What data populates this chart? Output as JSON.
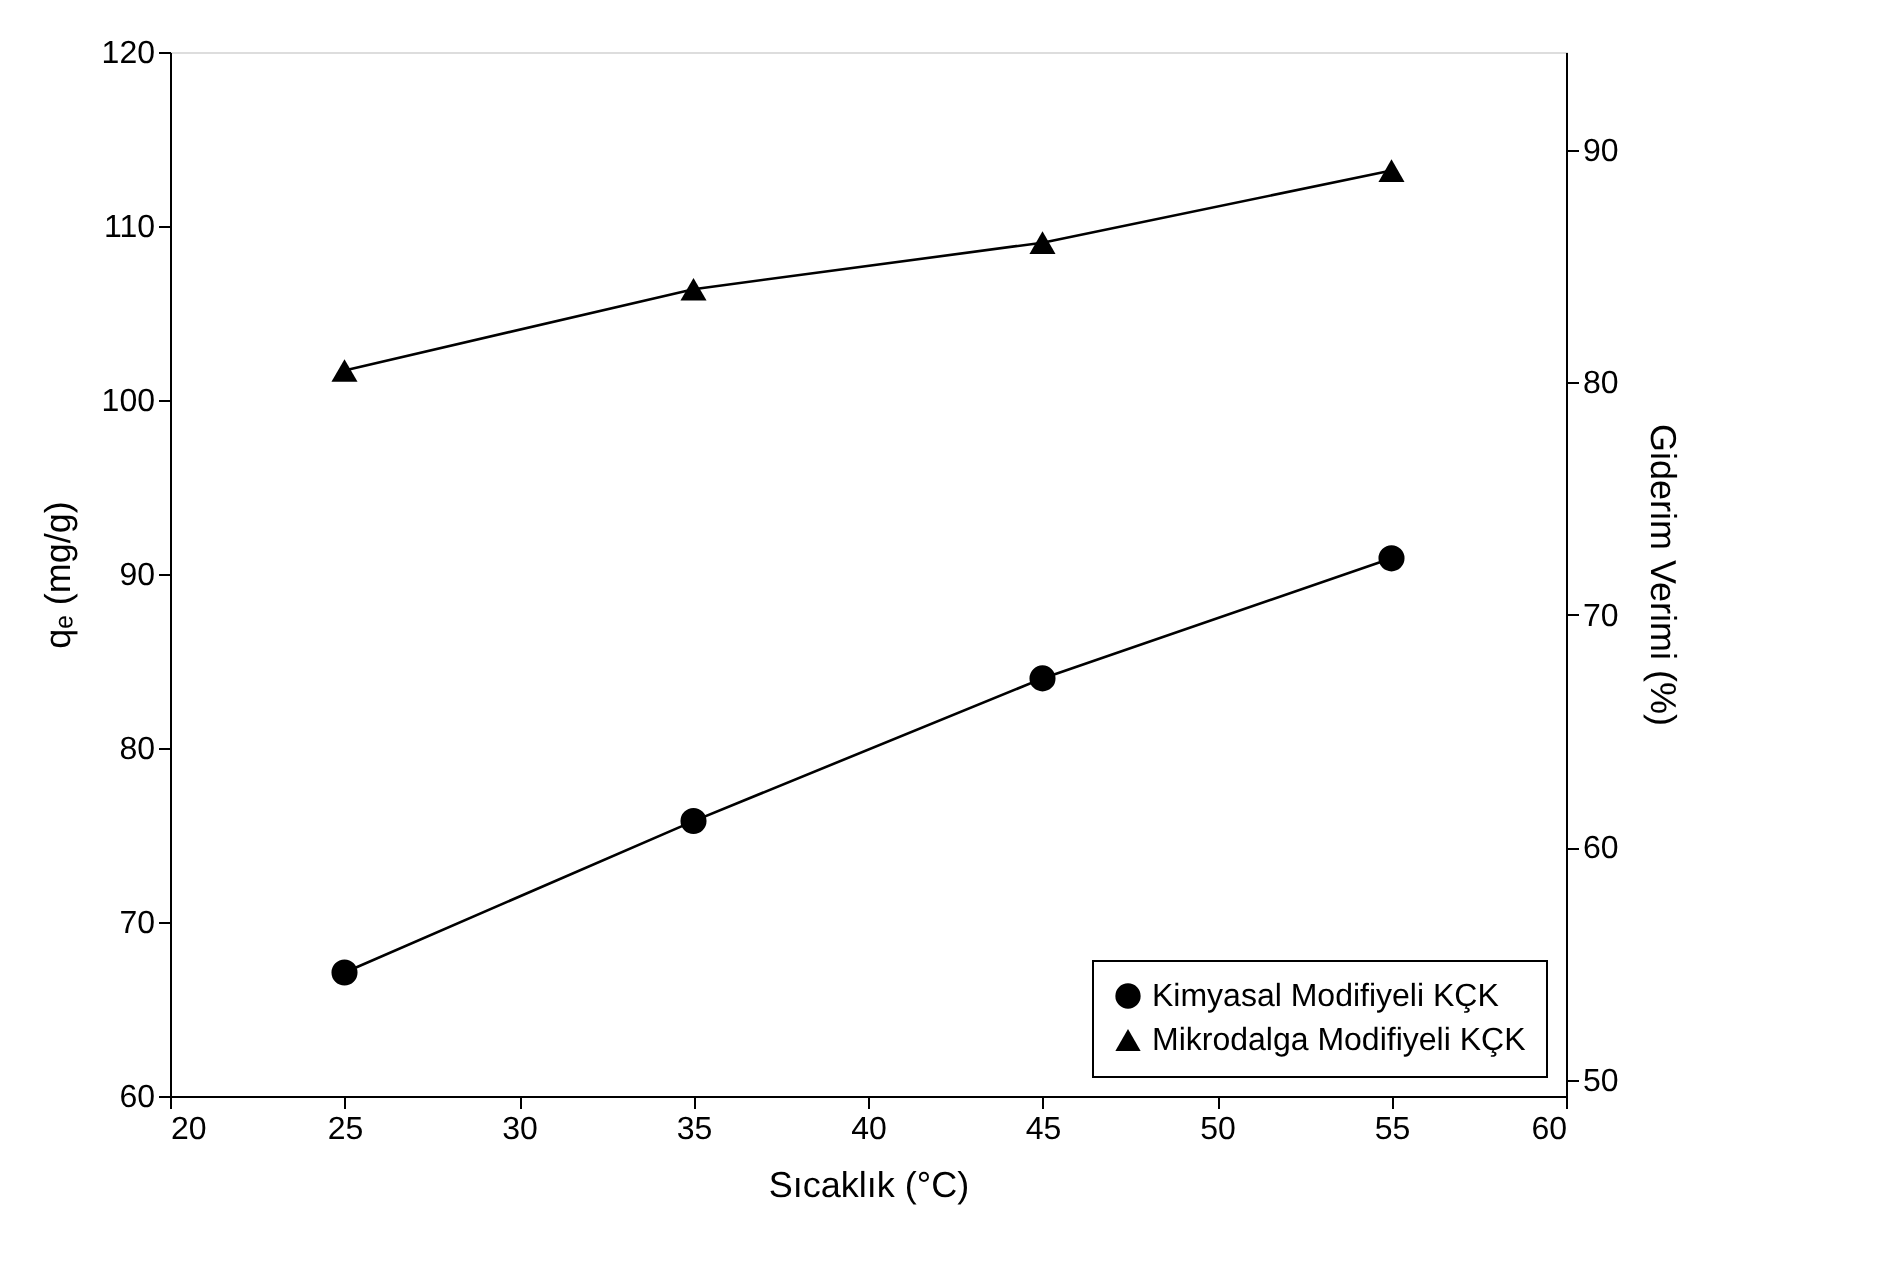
{
  "chart_data": {
    "type": "line",
    "xlabel": "Sıcaklık (°C)",
    "ylabel": "qₑ (mg/g)",
    "y2label": "Giderim Verimi (%)",
    "x": [
      25,
      35,
      45,
      55
    ],
    "xlim": [
      20,
      60
    ],
    "xticks": [
      20,
      25,
      30,
      35,
      40,
      45,
      50,
      55,
      60
    ],
    "ylim": [
      60,
      120
    ],
    "yticks": [
      60,
      70,
      80,
      90,
      100,
      110,
      120
    ],
    "y2lim": [
      49.3,
      94.2
    ],
    "y2ticks": [
      50,
      60,
      70,
      80,
      90
    ],
    "series": [
      {
        "name": "Kimyasal Modifiyeli KÇK",
        "color": "#000000",
        "marker": "circle",
        "values": [
          67.1,
          75.8,
          84.0,
          90.9
        ]
      },
      {
        "name": "Mikrodalga Modifiyeli KÇK",
        "color": "#000000",
        "marker": "triangle",
        "axis": "y2",
        "values": [
          80.5,
          84.0,
          86.0,
          89.1
        ]
      }
    ],
    "legend": "bottom right",
    "grid": false,
    "line_style": "solid"
  }
}
